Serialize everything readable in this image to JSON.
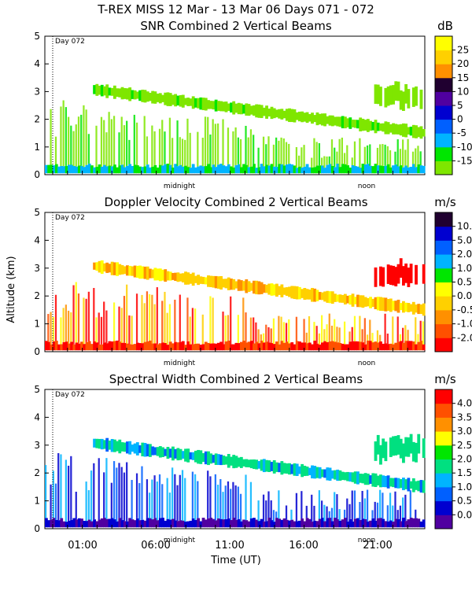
{
  "title": "T-REX MISS   12 Mar - 13 Mar 06 Days 071 - 072",
  "y_axis_label": "Altitude (km)",
  "x_axis_label": "Time (UT)",
  "x_ticks": [
    "01:00",
    "06:00",
    "11:00",
    "16:00",
    "21:00"
  ],
  "inline_time_labels": [
    "midnight",
    "noon"
  ],
  "day_marker_label": "Day 072",
  "chart_data": [
    {
      "type": "heatmap",
      "title": "SNR Combined 2 Vertical Beams",
      "unit": "dB",
      "ylim": [
        0,
        5
      ],
      "y_ticks": [
        "0",
        "1",
        "2",
        "3",
        "4",
        "5"
      ],
      "colorbar_levels": [
        "-15",
        "-10",
        "-5",
        "0",
        "5",
        "10",
        "15",
        "20",
        "25"
      ],
      "colors": [
        "#7fe600",
        "#00e600",
        "#00b4ff",
        "#0060ff",
        "#0000d0",
        "#5000a0",
        "#200030",
        "#ff9000",
        "#ffd000",
        "#ffff00"
      ]
    },
    {
      "type": "heatmap",
      "title": "Doppler Velocity Combined 2 Vertical Beams",
      "unit": "m/s",
      "ylim": [
        0,
        5
      ],
      "y_ticks": [
        "0",
        "1",
        "2",
        "3",
        "4",
        "5"
      ],
      "colorbar_levels": [
        "-2.0",
        "-1.0",
        "-0.5",
        "0.0",
        "0.5",
        "1.0",
        "2.0",
        "5.0",
        "10.0"
      ],
      "colors": [
        "#ff0000",
        "#ff5000",
        "#ff9000",
        "#ffd000",
        "#ffff00",
        "#00e600",
        "#00b4ff",
        "#0060ff",
        "#0000d0",
        "#200030"
      ]
    },
    {
      "type": "heatmap",
      "title": "Spectral Width Combined 2 Vertical Beams",
      "unit": "m/s",
      "ylim": [
        0,
        5
      ],
      "y_ticks": [
        "0",
        "1",
        "2",
        "3",
        "4",
        "5"
      ],
      "colorbar_levels": [
        "0.0",
        "0.5",
        "1.0",
        "1.5",
        "2.0",
        "2.5",
        "3.0",
        "3.5",
        "4.0"
      ],
      "colors": [
        "#5000a0",
        "#0000d0",
        "#0060ff",
        "#00b4ff",
        "#00e080",
        "#00e600",
        "#ffff00",
        "#ff9000",
        "#ff5000",
        "#ff0000"
      ]
    }
  ]
}
